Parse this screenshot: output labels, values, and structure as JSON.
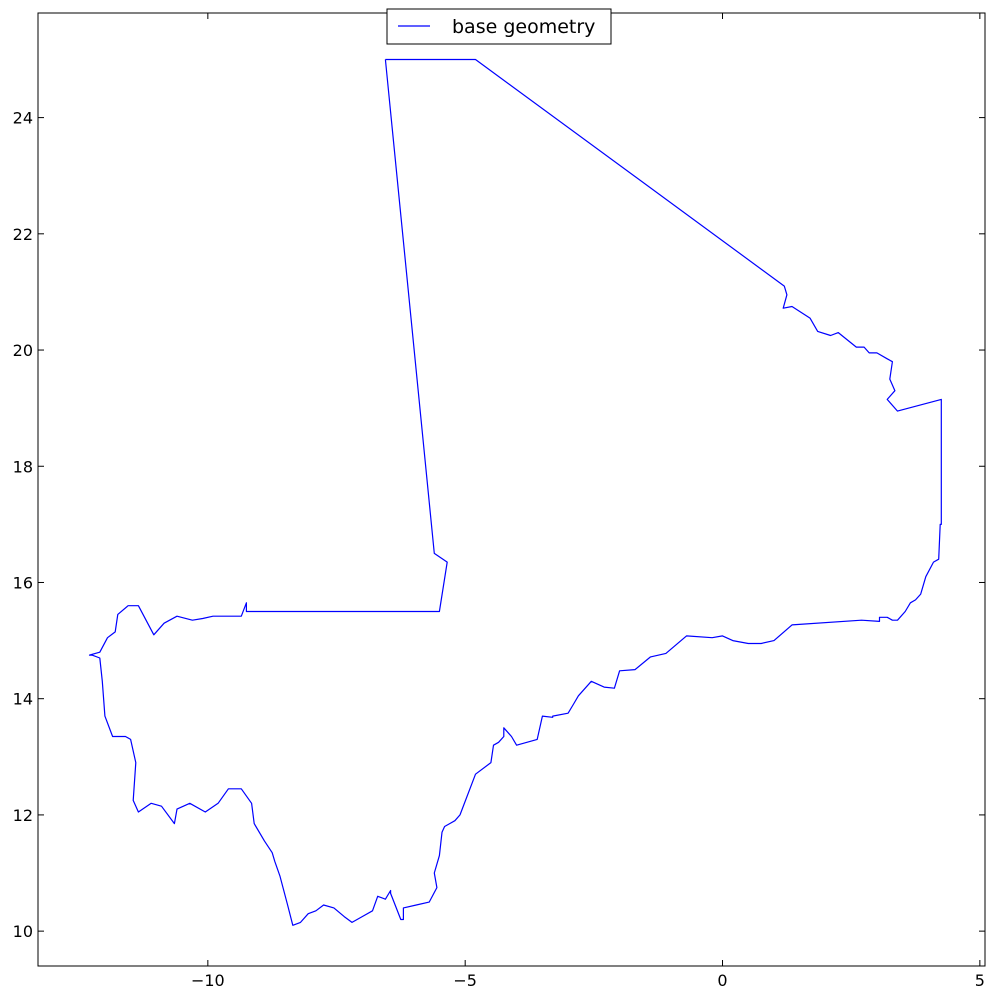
{
  "chart_data": {
    "type": "line",
    "title": "",
    "xlabel": "",
    "ylabel": "",
    "xlim": [
      -13.3,
      5.1
    ],
    "ylim": [
      9.4,
      25.8
    ],
    "xticks": [
      -10,
      -5,
      0,
      5
    ],
    "xtick_labels": [
      "−10",
      "−5",
      "0",
      "5"
    ],
    "yticks": [
      10,
      12,
      14,
      16,
      18,
      20,
      22,
      24
    ],
    "ytick_labels": [
      "10",
      "12",
      "14",
      "16",
      "18",
      "20",
      "22",
      "24"
    ],
    "grid": false,
    "legend_placement": "top-center",
    "series": [
      {
        "name": "base geometry",
        "color": "#0000ff",
        "x": [
          -6.55,
          -4.8,
          1.2,
          1.25,
          1.18,
          1.35,
          1.7,
          1.85,
          2.1,
          2.25,
          2.6,
          2.75,
          2.85,
          3.0,
          3.2,
          3.3,
          3.25,
          3.35,
          3.2,
          3.4,
          4.25,
          4.25,
          4.23,
          4.2,
          4.1,
          3.95,
          3.85,
          3.75,
          3.65,
          3.55,
          3.4,
          3.3,
          3.2,
          3.05,
          3.05,
          2.7,
          1.35,
          1.0,
          0.75,
          0.5,
          0.2,
          0.0,
          -0.2,
          -0.7,
          -1.1,
          -1.4,
          -1.7,
          -2.0,
          -2.1,
          -2.3,
          -2.55,
          -2.8,
          -2.9,
          -3.0,
          -3.3,
          -3.3,
          -3.5,
          -3.6,
          -3.8,
          -4.0,
          -4.1,
          -4.25,
          -4.25,
          -4.35,
          -4.45,
          -4.5,
          -4.8,
          -5.1,
          -5.2,
          -5.3,
          -5.4,
          -5.45,
          -5.5,
          -5.6,
          -5.55,
          -5.7,
          -5.95,
          -6.2,
          -6.2,
          -6.25,
          -6.45,
          -6.45,
          -6.55,
          -6.7,
          -6.8,
          -7.0,
          -7.2,
          -7.35,
          -7.55,
          -7.75,
          -7.9,
          -8.05,
          -8.2,
          -8.35,
          -8.45,
          -8.6,
          -8.7,
          -8.75,
          -8.9,
          -9.1,
          -9.15,
          -9.35,
          -9.6,
          -9.8,
          -10.05,
          -10.35,
          -10.6,
          -10.65,
          -10.9,
          -11.1,
          -11.35,
          -11.45,
          -11.4,
          -11.5,
          -11.6,
          -11.85,
          -12.0,
          -12.05,
          -12.1,
          -12.25,
          -12.3,
          -12.1,
          -11.95,
          -11.8,
          -11.75,
          -11.55,
          -11.35,
          -11.05,
          -10.85,
          -10.6,
          -10.3,
          -10.1,
          -9.9,
          -9.35,
          -9.25,
          -9.25,
          -5.5,
          -5.35,
          -5.6,
          -6.55
        ],
        "y": [
          25.0,
          25.0,
          21.1,
          20.95,
          20.72,
          20.75,
          20.55,
          20.32,
          20.25,
          20.3,
          20.05,
          20.05,
          19.95,
          19.95,
          19.85,
          19.8,
          19.5,
          19.3,
          19.15,
          18.95,
          19.15,
          17.0,
          17.0,
          16.4,
          16.35,
          16.1,
          15.8,
          15.7,
          15.65,
          15.5,
          15.35,
          15.35,
          15.4,
          15.4,
          15.33,
          15.35,
          15.27,
          15.0,
          14.95,
          14.95,
          15.0,
          15.08,
          15.05,
          15.08,
          14.78,
          14.72,
          14.5,
          14.48,
          14.18,
          14.2,
          14.3,
          14.05,
          13.9,
          13.75,
          13.7,
          13.68,
          13.7,
          13.3,
          13.25,
          13.2,
          13.35,
          13.5,
          13.35,
          13.25,
          13.2,
          12.9,
          12.7,
          12.0,
          11.9,
          11.85,
          11.8,
          11.7,
          11.3,
          11.0,
          10.75,
          10.5,
          10.45,
          10.4,
          10.2,
          10.2,
          10.65,
          10.7,
          10.55,
          10.6,
          10.35,
          10.25,
          10.15,
          10.25,
          10.4,
          10.45,
          10.35,
          10.3,
          10.15,
          10.1,
          10.45,
          10.95,
          11.2,
          11.35,
          11.55,
          11.85,
          12.2,
          12.45,
          12.45,
          12.2,
          12.05,
          12.2,
          12.1,
          11.85,
          12.15,
          12.2,
          12.05,
          12.25,
          12.9,
          13.3,
          13.35,
          13.35,
          13.7,
          14.3,
          14.7,
          14.75,
          14.75,
          14.8,
          15.05,
          15.15,
          15.45,
          15.6,
          15.6,
          15.1,
          15.3,
          15.42,
          15.35,
          15.38,
          15.42,
          15.42,
          15.65,
          15.5,
          15.5,
          16.35,
          16.5,
          25.0
        ]
      }
    ]
  }
}
